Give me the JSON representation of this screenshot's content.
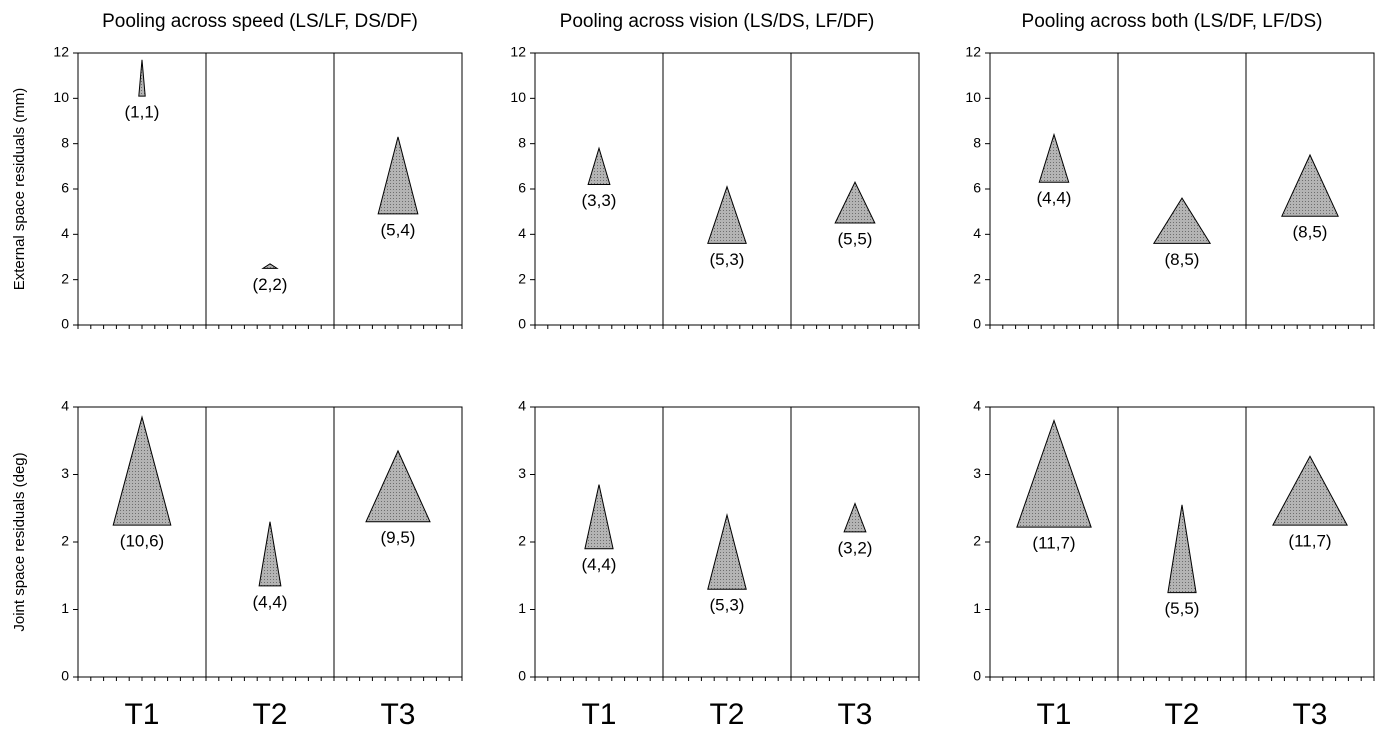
{
  "chart_data": [
    {
      "type": "triangle",
      "title": "Pooling across speed (LS/LF, DS/DF)",
      "ylabel": "External space residuals (mm)",
      "ylim": [
        0,
        12
      ],
      "yticks": [
        0,
        2,
        4,
        6,
        8,
        10,
        12
      ],
      "low": [
        10.1,
        2.5,
        4.9
      ],
      "high": [
        11.7,
        2.7,
        8.3
      ],
      "spread": [
        0.5,
        1.1,
        3.1
      ],
      "labels": [
        "(1,1)",
        "(2,2)",
        "(5,4)"
      ]
    },
    {
      "type": "triangle",
      "title": "Pooling across vision (LS/DS, LF/DF)",
      "ylim": [
        0,
        12
      ],
      "yticks": [
        0,
        2,
        4,
        6,
        8,
        10,
        12
      ],
      "low": [
        6.2,
        3.6,
        4.5
      ],
      "high": [
        7.8,
        6.1,
        6.3
      ],
      "spread": [
        1.7,
        3,
        3.1
      ],
      "labels": [
        "(3,3)",
        "(5,3)",
        "(5,5)"
      ]
    },
    {
      "type": "triangle",
      "title": "Pooling across both (LS/DF, LF/DS)",
      "ylim": [
        0,
        12
      ],
      "yticks": [
        0,
        2,
        4,
        6,
        8,
        10,
        12
      ],
      "low": [
        6.3,
        3.6,
        4.8
      ],
      "high": [
        8.4,
        5.6,
        7.5
      ],
      "spread": [
        2.3,
        4.4,
        4.4
      ],
      "labels": [
        "(4,4)",
        "(8,5)",
        "(8,5)"
      ]
    },
    {
      "type": "triangle",
      "ylabel": "Joint space residuals (deg)",
      "categories": [
        "T1",
        "T2",
        "T3"
      ],
      "ylim": [
        0,
        4
      ],
      "yticks": [
        0,
        1,
        2,
        3,
        4
      ],
      "low": [
        2.25,
        1.35,
        2.3
      ],
      "high": [
        3.85,
        2.3,
        3.35
      ],
      "spread": [
        4.5,
        1.7,
        5
      ],
      "labels": [
        "(10,6)",
        "(4,4)",
        "(9,5)"
      ]
    },
    {
      "type": "triangle",
      "categories": [
        "T1",
        "T2",
        "T3"
      ],
      "ylim": [
        0,
        4
      ],
      "yticks": [
        0,
        1,
        2,
        3,
        4
      ],
      "low": [
        1.9,
        1.3,
        2.15
      ],
      "high": [
        2.85,
        2.4,
        2.57
      ],
      "spread": [
        2.2,
        3,
        1.7
      ],
      "labels": [
        "(4,4)",
        "(5,3)",
        "(3,2)"
      ]
    },
    {
      "type": "triangle",
      "categories": [
        "T1",
        "T2",
        "T3"
      ],
      "ylim": [
        0,
        4
      ],
      "yticks": [
        0,
        1,
        2,
        3,
        4
      ],
      "low": [
        2.22,
        1.25,
        2.25
      ],
      "high": [
        3.8,
        2.55,
        3.27
      ],
      "spread": [
        5.8,
        2.2,
        5.8
      ],
      "labels": [
        "(11,7)",
        "(5,5)",
        "(11,7)"
      ]
    }
  ]
}
